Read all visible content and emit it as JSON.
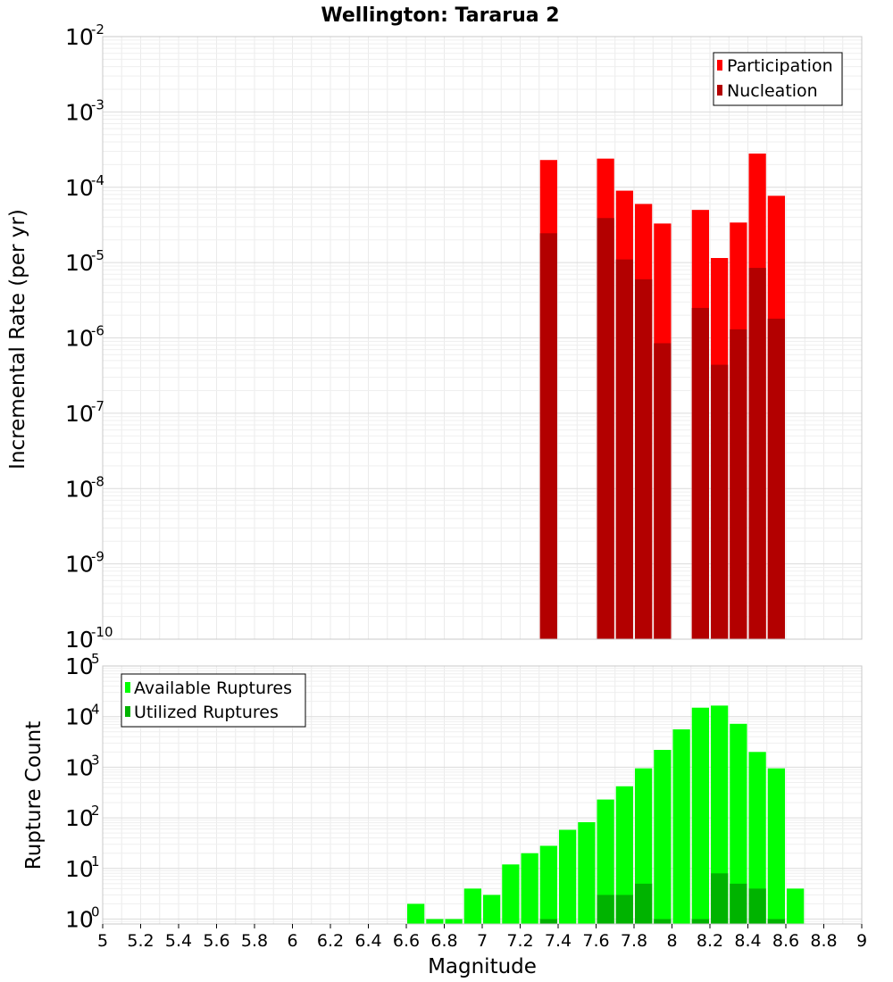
{
  "title": "Wellington: Tararua 2",
  "xlabel": "Magnitude",
  "x_ticks": [
    "5",
    "5.2",
    "5.4",
    "5.6",
    "5.8",
    "6",
    "6.2",
    "6.4",
    "6.6",
    "6.8",
    "7",
    "7.2",
    "7.4",
    "7.6",
    "7.8",
    "8",
    "8.2",
    "8.4",
    "8.6",
    "8.8",
    "9"
  ],
  "chart_data": [
    {
      "type": "bar",
      "ylabel": "Incremental Rate (per yr)",
      "y_scale": "log",
      "ylim": [
        1e-10,
        0.01
      ],
      "y_ticks": [
        {
          "base": "10",
          "exp": "-10"
        },
        {
          "base": "10",
          "exp": "-9"
        },
        {
          "base": "10",
          "exp": "-8"
        },
        {
          "base": "10",
          "exp": "-7"
        },
        {
          "base": "10",
          "exp": "-6"
        },
        {
          "base": "10",
          "exp": "-5"
        },
        {
          "base": "10",
          "exp": "-4"
        },
        {
          "base": "10",
          "exp": "-3"
        },
        {
          "base": "10",
          "exp": "-2"
        }
      ],
      "xlim": [
        5,
        9
      ],
      "legend_position": "top-right",
      "grid": true,
      "series": [
        {
          "name": "Participation",
          "color": "#ff0000",
          "x": [
            7.35,
            7.65,
            7.75,
            7.85,
            7.95,
            8.15,
            8.25,
            8.35,
            8.45,
            8.55
          ],
          "values": [
            0.00023,
            0.00024,
            9e-05,
            6e-05,
            3.3e-05,
            5e-05,
            1.15e-05,
            3.4e-05,
            0.00028,
            7.7e-05
          ]
        },
        {
          "name": "Nucleation",
          "color": "#b30000",
          "x": [
            7.35,
            7.65,
            7.75,
            7.85,
            7.95,
            8.15,
            8.25,
            8.35,
            8.45,
            8.55
          ],
          "values": [
            2.45e-05,
            3.9e-05,
            1.1e-05,
            6e-06,
            8.5e-07,
            2.5e-06,
            4.4e-07,
            1.3e-06,
            8.5e-06,
            1.8e-06
          ]
        }
      ]
    },
    {
      "type": "bar",
      "ylabel": "Rupture Count",
      "y_scale": "log",
      "ylim": [
        0.8,
        100000
      ],
      "y_ticks": [
        {
          "base": "10",
          "exp": "0"
        },
        {
          "base": "10",
          "exp": "1"
        },
        {
          "base": "10",
          "exp": "2"
        },
        {
          "base": "10",
          "exp": "3"
        },
        {
          "base": "10",
          "exp": "4"
        },
        {
          "base": "10",
          "exp": "5"
        }
      ],
      "xlim": [
        5,
        9
      ],
      "legend_position": "top-left",
      "grid": true,
      "series": [
        {
          "name": "Available Ruptures",
          "color": "#00ff00",
          "x": [
            6.65,
            6.75,
            6.85,
            6.95,
            7.05,
            7.15,
            7.25,
            7.35,
            7.45,
            7.55,
            7.65,
            7.75,
            7.85,
            7.95,
            8.05,
            8.15,
            8.25,
            8.35,
            8.45,
            8.55,
            8.65
          ],
          "values": [
            2,
            1,
            1,
            4,
            3,
            12,
            20,
            28,
            58,
            82,
            230,
            420,
            950,
            2200,
            5600,
            15000,
            16500,
            7200,
            2000,
            950,
            4
          ]
        },
        {
          "name": "Utilized Ruptures",
          "color": "#00b300",
          "x": [
            7.35,
            7.65,
            7.75,
            7.85,
            7.95,
            8.15,
            8.25,
            8.35,
            8.45,
            8.55
          ],
          "values": [
            1,
            3,
            3,
            5,
            1,
            1,
            8,
            5,
            4,
            1
          ]
        }
      ]
    }
  ]
}
